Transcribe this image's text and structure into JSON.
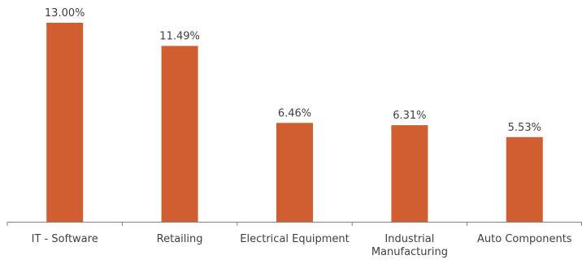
{
  "chart_data": {
    "type": "bar",
    "categories": [
      "IT - Software",
      "Retailing",
      "Electrical Equipment",
      "Industrial Manufacturing",
      "Auto Components"
    ],
    "category_lines": [
      [
        "IT - Software"
      ],
      [
        "Retailing"
      ],
      [
        "Electrical Equipment"
      ],
      [
        "Industrial",
        "Manufacturing"
      ],
      [
        "Auto Components"
      ]
    ],
    "values": [
      13.0,
      11.49,
      6.46,
      6.31,
      5.53
    ],
    "value_labels": [
      "13.00%",
      "11.49%",
      "6.46%",
      "6.31%",
      "5.53%"
    ],
    "ylim": [
      0,
      13
    ],
    "bar_color": "#D15E30",
    "axis_color": "#808080",
    "grid": false,
    "legend": "none"
  }
}
